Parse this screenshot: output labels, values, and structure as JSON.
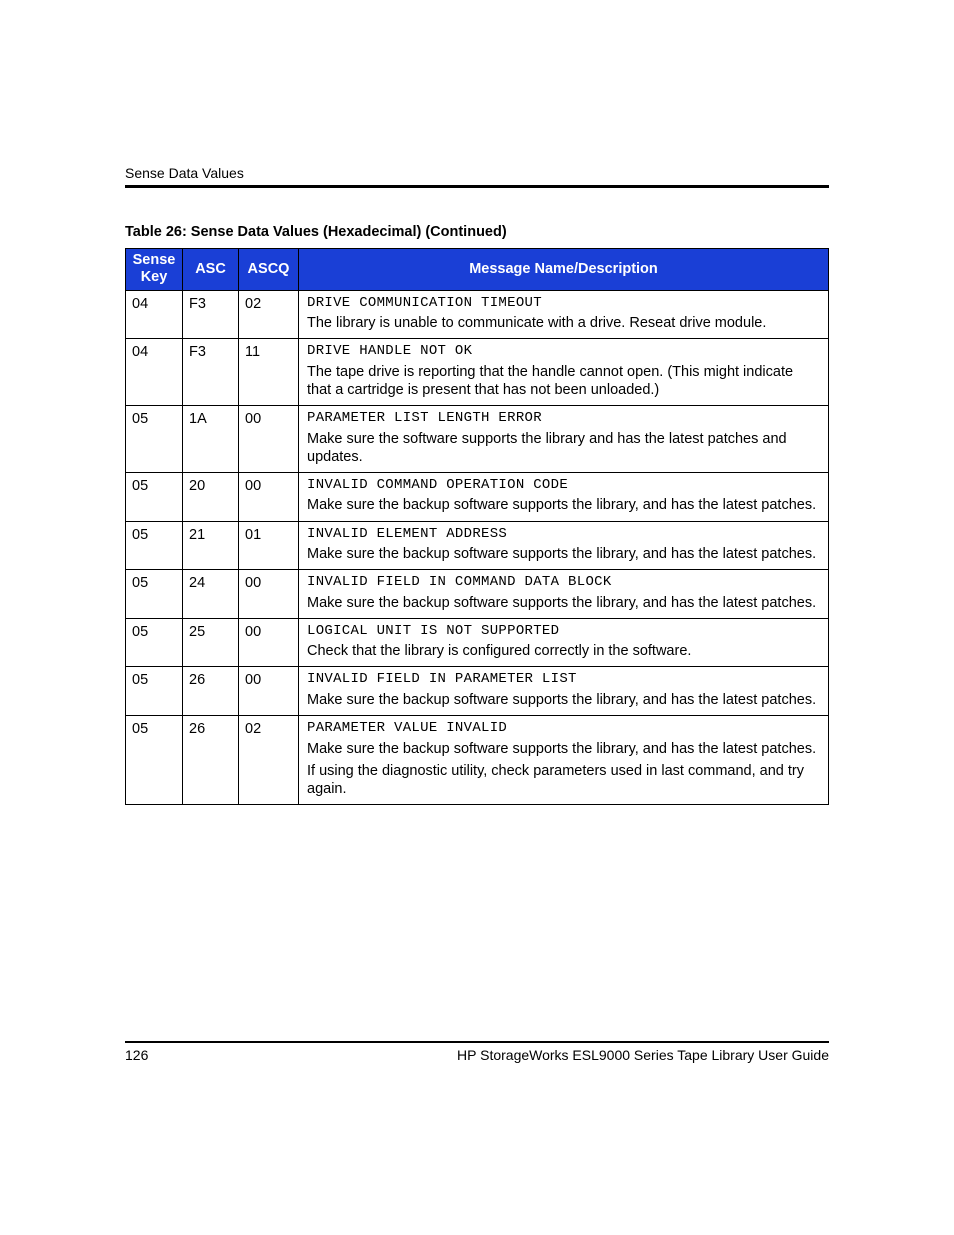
{
  "header": {
    "section_label": "Sense Data Values"
  },
  "table": {
    "caption": "Table 26:  Sense Data Values (Hexadecimal)  (Continued)",
    "columns": {
      "sense_key_line1": "Sense",
      "sense_key_line2": "Key",
      "asc": "ASC",
      "ascq": "ASCQ",
      "msg": "Message Name/Description"
    },
    "rows": [
      {
        "sense_key": "04",
        "asc": "F3",
        "ascq": "02",
        "msg_title": "DRIVE COMMUNICATION TIMEOUT",
        "msg_desc": [
          "The library is unable to communicate with a drive. Reseat drive module."
        ]
      },
      {
        "sense_key": "04",
        "asc": "F3",
        "ascq": "11",
        "msg_title": "DRIVE HANDLE NOT OK",
        "msg_desc": [
          "The tape drive is reporting that the handle cannot open. (This might indicate that a cartridge is present that has not been unloaded.)"
        ]
      },
      {
        "sense_key": "05",
        "asc": "1A",
        "ascq": "00",
        "msg_title": "PARAMETER LIST LENGTH ERROR",
        "msg_desc": [
          "Make sure the software supports the library and has the latest patches and updates."
        ]
      },
      {
        "sense_key": "05",
        "asc": "20",
        "ascq": "00",
        "msg_title": "INVALID COMMAND OPERATION CODE",
        "msg_desc": [
          "Make sure the backup software supports the library, and has the latest patches."
        ]
      },
      {
        "sense_key": "05",
        "asc": "21",
        "ascq": "01",
        "msg_title": "INVALID ELEMENT ADDRESS",
        "msg_desc": [
          "Make sure the backup software supports the library, and has the latest patches."
        ]
      },
      {
        "sense_key": "05",
        "asc": "24",
        "ascq": "00",
        "msg_title": "INVALID FIELD IN COMMAND DATA BLOCK",
        "msg_desc": [
          "Make sure the backup software supports the library, and has the latest patches."
        ]
      },
      {
        "sense_key": "05",
        "asc": "25",
        "ascq": "00",
        "msg_title": "LOGICAL UNIT IS NOT SUPPORTED",
        "msg_desc": [
          "Check that the library is configured correctly in the software."
        ]
      },
      {
        "sense_key": "05",
        "asc": "26",
        "ascq": "00",
        "msg_title": "INVALID FIELD IN PARAMETER LIST",
        "msg_desc": [
          "Make sure the backup software supports the library, and has the latest patches."
        ]
      },
      {
        "sense_key": "05",
        "asc": "26",
        "ascq": "02",
        "msg_title": "PARAMETER VALUE INVALID",
        "msg_desc": [
          "Make sure the backup software supports the library, and has the latest patches.",
          "If using the diagnostic utility, check parameters used in last command, and try again."
        ]
      }
    ]
  },
  "footer": {
    "page_number": "126",
    "doc_title": "HP StorageWorks ESL9000 Series Tape Library User Guide"
  },
  "style": {
    "header_bg": "#1a3fd6",
    "header_fg": "#ffffff",
    "border_color": "#000000",
    "body_fontsize_pt": 11,
    "mono_fontsize_pt": 10.5
  }
}
